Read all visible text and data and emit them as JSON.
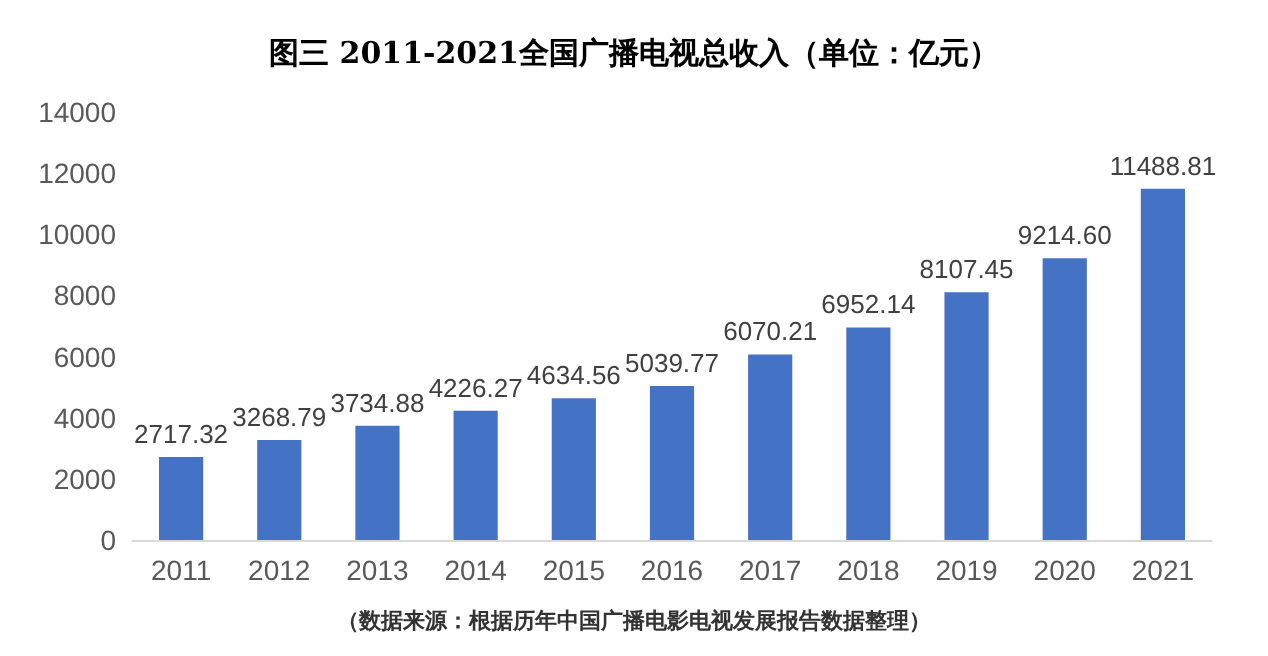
{
  "chart_data": {
    "type": "bar",
    "title": "图三 2011-2021全国广播电视总收入（单位：亿元）",
    "categories": [
      "2011",
      "2012",
      "2013",
      "2014",
      "2015",
      "2016",
      "2017",
      "2018",
      "2019",
      "2020",
      "2021"
    ],
    "values": [
      2717.32,
      3268.79,
      3734.88,
      4226.27,
      4634.56,
      5039.77,
      6070.21,
      6952.14,
      8107.45,
      9214.6,
      11488.81
    ],
    "value_labels": [
      "2717.32",
      "3268.79",
      "3734.88",
      "4226.27",
      "4634.56",
      "5039.77",
      "6070.21",
      "6952.14",
      "8107.45",
      "9214.60",
      "11488.81"
    ],
    "color": "#4472c4",
    "ylim": [
      0,
      14000
    ],
    "yticks": [
      0,
      2000,
      4000,
      6000,
      8000,
      10000,
      12000,
      14000
    ],
    "annotations": [
      "（数据来源：根据历年中国广播电影电视发展报告数据整理）"
    ]
  }
}
